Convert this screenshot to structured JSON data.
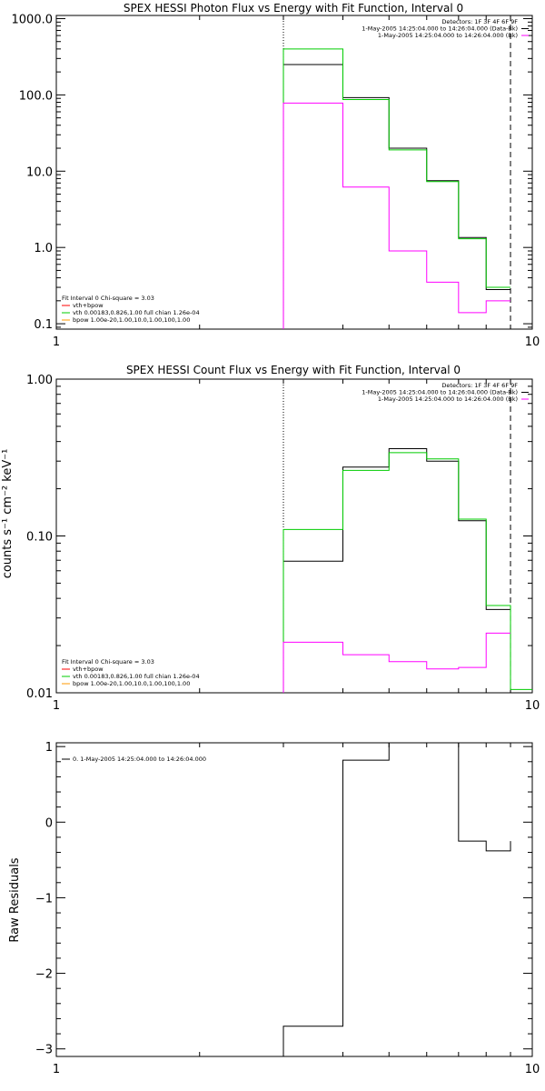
{
  "colors": {
    "background": "#ffffff",
    "axes": "#000000",
    "total_fit": "#000000",
    "vth": "#00cc00",
    "bpow": "#ff00ff",
    "legend_vth_bpow": "#ff0000",
    "legend_bpow": "#ff9900"
  },
  "chart_data": [
    {
      "type": "line",
      "title": "SPEX HESSI Photon Flux vs Energy with Fit Function, Interval 0",
      "xscale": "log",
      "yscale": "log",
      "xlim": [
        1,
        10
      ],
      "ylim": [
        0.085,
        1100
      ],
      "xticks": [
        1,
        10
      ],
      "xticklabels": [
        "1",
        "10"
      ],
      "yticks": [
        0.1,
        1,
        10,
        100,
        1000
      ],
      "yticklabels": [
        "0.1",
        "1.0",
        "10.0",
        "100.0",
        "1000.0"
      ],
      "ylabel": "",
      "vline_dotted": 3.0,
      "vline_dashed": 9.0,
      "edges": [
        3.0,
        4.0,
        5.0,
        6.0,
        7.0,
        8.0,
        9.0
      ],
      "series": [
        {
          "name": "vth+bpow",
          "color": "#000000",
          "values": [
            250,
            92,
            20,
            7.5,
            1.35,
            0.28
          ]
        },
        {
          "name": "vth",
          "color": "#00cc00",
          "values": [
            400,
            87,
            19,
            7.3,
            1.3,
            0.3
          ]
        },
        {
          "name": "bpow",
          "color": "#ff00ff",
          "values": [
            78,
            6.2,
            0.9,
            0.35,
            0.14,
            0.2
          ]
        }
      ],
      "info_lines": [
        "Detectors: 1F 3F 4F 6F 9F",
        "1-May-2005 14:25:04.000 to 14:26:04.000 (Data-Bk)",
        "1-May-2005 14:25:04.000 to 14:26:04.000 (Bk)"
      ],
      "info_colors": [
        "",
        "#000000",
        "#ff00ff"
      ],
      "legend_lines": [
        "Fit Interval 0   Chi-square = 3.03",
        "vth+bpow",
        "vth 0.00183,0.826,1.00  full chian 1.26e-04",
        "bpow 1.00e-20,1.00,10.0,1.00,100,1.00"
      ],
      "legend_colors": [
        "",
        "#ff0000",
        "#00cc00",
        "#ff9900"
      ]
    },
    {
      "type": "line",
      "title": "SPEX HESSI Count Flux vs Energy with Fit Function, Interval 0",
      "xscale": "log",
      "yscale": "log",
      "xlim": [
        1,
        10
      ],
      "ylim": [
        0.01,
        1.0
      ],
      "xticks": [
        1,
        10
      ],
      "xticklabels": [
        "1",
        "10"
      ],
      "yticks": [
        0.01,
        0.1,
        1.0
      ],
      "yticklabels": [
        "0.01",
        "0.10",
        "1.00"
      ],
      "ylabel": "counts s⁻¹ cm⁻² keV⁻¹",
      "vline_dotted": 3.0,
      "vline_dashed": 9.0,
      "edges": [
        3.0,
        4.0,
        5.0,
        6.0,
        7.0,
        8.0,
        9.0,
        10.0
      ],
      "series": [
        {
          "name": "Data-Bk",
          "color": "#000000",
          "values": [
            0.069,
            0.275,
            0.36,
            0.3,
            0.125,
            0.034
          ]
        },
        {
          "name": "vth",
          "color": "#00cc00",
          "values": [
            0.11,
            0.262,
            0.34,
            0.31,
            0.128,
            0.036,
            0.0105
          ],
          "end": 10.0
        },
        {
          "name": "Bk",
          "color": "#ff00ff",
          "values": [
            0.021,
            0.0175,
            0.0158,
            0.0142,
            0.0145,
            0.024
          ]
        }
      ],
      "info_lines": [
        "Detectors: 1F 3F 4F 6F 9F",
        "1-May-2005 14:25:04.000 to 14:26:04.000 (Data-Bk)",
        "1-May-2005 14:25:04.000 to 14:26:04.000 (Bk)"
      ],
      "info_colors": [
        "",
        "#000000",
        "#ff00ff"
      ],
      "legend_lines": [
        "Fit Interval 0   Chi-square = 3.03",
        "vth+bpow",
        "vth 0.00183,0.826,1.00  full chian 1.26e-04",
        "bpow 1.00e-20,1.00,10.0,1.00,100,1.00"
      ],
      "legend_colors": [
        "",
        "#ff0000",
        "#00cc00",
        "#ff9900"
      ]
    },
    {
      "type": "line",
      "title": "",
      "xscale": "log",
      "yscale": "linear",
      "xlim": [
        1,
        10
      ],
      "ylim": [
        -3.1,
        1.05
      ],
      "xticks": [
        1,
        10
      ],
      "xticklabels": [
        "1",
        "10"
      ],
      "yticks": [
        -3,
        -2,
        -1,
        0,
        1
      ],
      "yticklabels": [
        "−3",
        "−2",
        "−1",
        "0",
        "1"
      ],
      "ylabel": "Raw Residuals",
      "edges": [
        3.0,
        4.0,
        5.0,
        6.0,
        7.0,
        8.0,
        9.0
      ],
      "series": [
        {
          "name": "0.  1-May-2005 14:25:04.000 to 14:26:04.000",
          "color": "#000000",
          "values": [
            -2.7,
            0.82,
            1.05,
            1.05,
            -0.25,
            -0.38,
            -0.25
          ]
        }
      ],
      "legend_lines": [
        "0.  1-May-2005 14:25:04.000 to 14:26:04.000"
      ],
      "legend_colors": [
        "#000000"
      ]
    }
  ]
}
